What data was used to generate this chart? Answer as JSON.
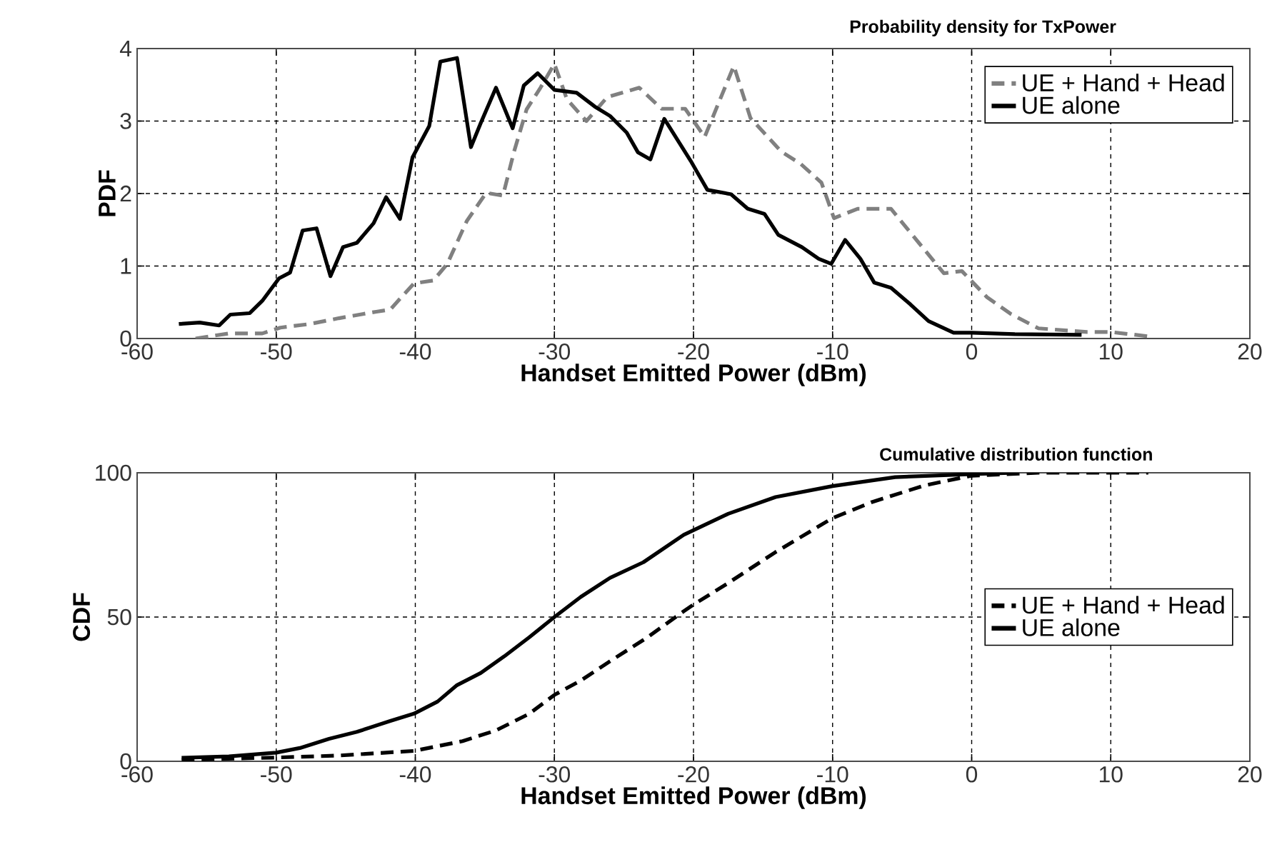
{
  "chart_data": [
    {
      "type": "line",
      "title": "Probability density for TxPower",
      "xlabel": "Handset Emitted Power (dBm)",
      "ylabel": "PDF",
      "xlim": [
        -60,
        20
      ],
      "ylim": [
        0,
        4
      ],
      "xticks": [
        -60,
        -50,
        -40,
        -30,
        -20,
        -10,
        0,
        10,
        20
      ],
      "yticks": [
        0,
        1,
        2,
        3,
        4
      ],
      "grid": true,
      "legend": "top right",
      "series": [
        {
          "name": "UE + Hand + Head",
          "color": "#808080",
          "line_style": "dashed",
          "x": [
            -55.8,
            -53.4,
            -51.0,
            -49.7,
            -47.6,
            -45.5,
            -42.8,
            -41.8,
            -40.1,
            -38.7,
            -37.7,
            -36.3,
            -34.9,
            -33.7,
            -32.9,
            -32.0,
            -31.0,
            -30.0,
            -29.1,
            -27.7,
            -26.2,
            -23.9,
            -22.3,
            -20.6,
            -19.2,
            -17.1,
            -15.9,
            -13.7,
            -12.3,
            -10.8,
            -9.9,
            -8.2,
            -5.8,
            -4.4,
            -2.0,
            -0.7,
            1.1,
            2.8,
            4.8,
            8.3,
            10.0,
            12.7
          ],
          "values": [
            0,
            0.07,
            0.07,
            0.15,
            0.2,
            0.28,
            0.37,
            0.4,
            0.76,
            0.8,
            1.03,
            1.62,
            2.01,
            1.97,
            2.58,
            3.16,
            3.46,
            3.79,
            3.3,
            3.0,
            3.33,
            3.46,
            3.17,
            3.17,
            2.78,
            3.76,
            3.04,
            2.58,
            2.41,
            2.15,
            1.66,
            1.79,
            1.79,
            1.46,
            0.9,
            0.93,
            0.57,
            0.34,
            0.14,
            0.09,
            0.09,
            0.03
          ]
        },
        {
          "name": "UE alone",
          "color": "#000000",
          "line_style": "solid",
          "x": [
            -57.0,
            -55.5,
            -54.1,
            -53.3,
            -51.9,
            -51.0,
            -49.8,
            -49.0,
            -48.1,
            -47.1,
            -46.1,
            -45.2,
            -44.2,
            -43.0,
            -42.1,
            -41.1,
            -40.2,
            -39.0,
            -38.2,
            -37.0,
            -36.0,
            -35.3,
            -34.2,
            -33.0,
            -32.2,
            -31.2,
            -30.0,
            -28.4,
            -27.1,
            -26.0,
            -24.8,
            -24.0,
            -23.1,
            -22.1,
            -20.2,
            -19.0,
            -17.3,
            -16.1,
            -14.9,
            -13.9,
            -12.2,
            -11.0,
            -10.1,
            -9.1,
            -8.0,
            -7.0,
            -5.8,
            -4.4,
            -3.1,
            -1.3,
            0,
            3.1,
            7.9
          ],
          "values": [
            0.2,
            0.22,
            0.18,
            0.33,
            0.35,
            0.52,
            0.83,
            0.91,
            1.49,
            1.52,
            0.86,
            1.26,
            1.32,
            1.59,
            1.95,
            1.65,
            2.5,
            2.93,
            3.82,
            3.87,
            2.64,
            2.97,
            3.46,
            2.9,
            3.49,
            3.66,
            3.43,
            3.39,
            3.2,
            3.07,
            2.84,
            2.57,
            2.47,
            3.03,
            2.45,
            2.05,
            1.99,
            1.79,
            1.72,
            1.43,
            1.26,
            1.1,
            1.03,
            1.36,
            1.1,
            0.77,
            0.7,
            0.47,
            0.24,
            0.08,
            0.08,
            0.06,
            0.05
          ]
        }
      ]
    },
    {
      "type": "line",
      "title": "Cumulative distribution function",
      "xlabel": "Handset Emitted Power (dBm)",
      "ylabel": "CDF",
      "xlim": [
        -60,
        20
      ],
      "ylim": [
        0,
        100
      ],
      "xticks": [
        -60,
        -50,
        -40,
        -30,
        -20,
        -10,
        0,
        10,
        20
      ],
      "yticks": [
        0,
        50,
        100
      ],
      "grid": true,
      "legend": "right",
      "series": [
        {
          "name": "UE + Hand + Head",
          "color": "#000000",
          "line_style": "dashed",
          "x": [
            -56.8,
            -50,
            -45.5,
            -40.1,
            -36.6,
            -34.2,
            -31.8,
            -30,
            -28.1,
            -26.0,
            -23.3,
            -20.7,
            -20,
            -17.5,
            -14.1,
            -10,
            -7.2,
            -3.4,
            0,
            4.8,
            12.7
          ],
          "values": [
            0.5,
            1.3,
            2,
            3.6,
            7,
            10.7,
            16.5,
            23,
            28,
            34.7,
            43,
            52,
            54.3,
            61.8,
            72.5,
            84.3,
            89.8,
            95.6,
            99,
            100,
            100
          ]
        },
        {
          "name": "UE alone",
          "color": "#000000",
          "line_style": "solid",
          "x": [
            -56.8,
            -53.4,
            -50,
            -48.3,
            -46.2,
            -44.2,
            -41.8,
            -40.1,
            -38.4,
            -37.0,
            -35.3,
            -33.6,
            -31.8,
            -30,
            -28.1,
            -26.0,
            -23.6,
            -20.7,
            -17.5,
            -14.1,
            -10,
            -5.5,
            0,
            3.1
          ],
          "values": [
            1.2,
            1.7,
            3,
            4.6,
            7.8,
            10.2,
            14,
            16.5,
            20.7,
            26.4,
            30.6,
            36.4,
            43,
            50,
            57,
            63.6,
            69,
            78.5,
            85.8,
            91.6,
            95.4,
            98.5,
            99.5,
            100
          ]
        }
      ]
    }
  ]
}
